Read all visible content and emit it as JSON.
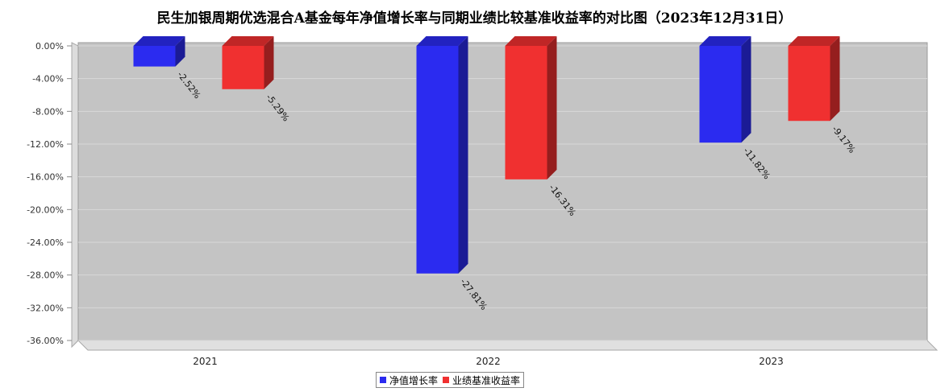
{
  "chart_data": {
    "type": "bar",
    "title": "民生加银周期优选混合A基金每年净值增长率与同期业绩比较基准收益率的对比图（2023年12月31日）",
    "categories": [
      "2021",
      "2022",
      "2023"
    ],
    "series": [
      {
        "name": "净值增长率",
        "color": "#2b2bf0",
        "values": [
          -2.52,
          -27.81,
          -11.82
        ],
        "labels": [
          "-2.52%",
          "-27.81%",
          "-11.82%"
        ]
      },
      {
        "name": "业绩基准收益率",
        "color": "#f03030",
        "values": [
          -5.29,
          -16.31,
          -9.17
        ],
        "labels": [
          "-5.29%",
          "-16.31%",
          "-9.17%"
        ]
      }
    ],
    "ylim": [
      -36,
      0
    ],
    "yticks": [
      0,
      -4,
      -8,
      -12,
      -16,
      -20,
      -24,
      -28,
      -32,
      -36
    ],
    "ytick_labels": [
      "0.00%",
      "-4.00%",
      "-8.00%",
      "-12.00%",
      "-16.00%",
      "-20.00%",
      "-24.00%",
      "-28.00%",
      "-32.00%",
      "-36.00%"
    ],
    "grid": true,
    "legend_position": "bottom-center"
  }
}
